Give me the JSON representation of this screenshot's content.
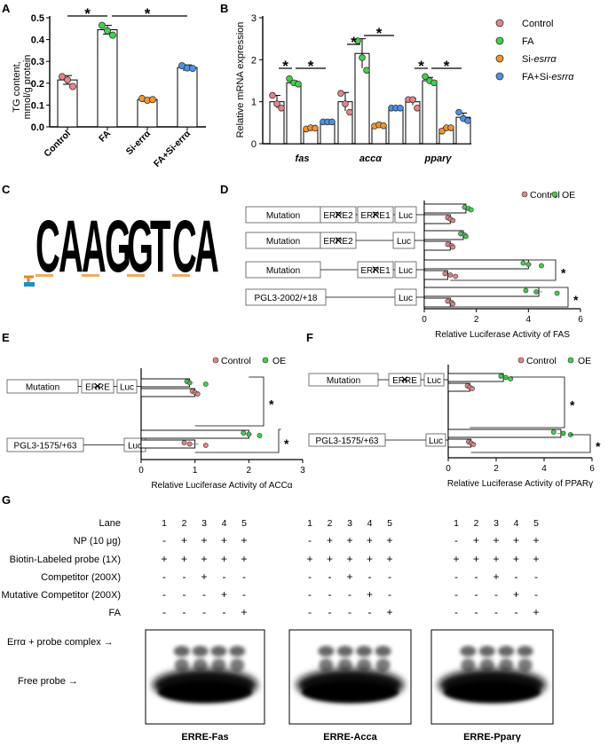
{
  "panels": {
    "A": "A",
    "B": "B",
    "C": "C",
    "D": "D",
    "E": "E",
    "F": "F",
    "G": "G"
  },
  "star": "*",
  "colors": {
    "control": "#e8838a",
    "fa": "#3fd24a",
    "si": "#f0962f",
    "fasi": "#4b92e6",
    "oe": "#3fd24a",
    "bar_fill": "#ffffff"
  },
  "panel_A": {
    "chart_data": {
      "type": "bar",
      "categories": [
        "Control",
        "FA",
        "Si-errα",
        "FA+Si-errα"
      ],
      "values": [
        0.215,
        0.445,
        0.125,
        0.272
      ],
      "errors": [
        0.02,
        0.02,
        0.008,
        0.012
      ],
      "points": [
        [
          0.23,
          0.215,
          0.185
        ],
        [
          0.465,
          0.44,
          0.42
        ],
        [
          0.13,
          0.122,
          0.125
        ],
        [
          0.28,
          0.27,
          0.268
        ]
      ],
      "ylabel": "TG content, mmol/g protein",
      "ylim": [
        0,
        0.5
      ],
      "yticks": [
        0.0,
        0.1,
        0.2,
        0.3,
        0.4,
        0.5
      ],
      "ytick_labels": [
        "0.0",
        "0.1",
        "0.2",
        "0.3",
        "0.4",
        "0.5"
      ]
    },
    "ylabel_lines": [
      "TG content,",
      "mmol/g protein"
    ],
    "category_lines": [
      "Control",
      "FA",
      "Si-errα",
      "FA+Si-errα"
    ]
  },
  "panel_B": {
    "chart_data": {
      "type": "bar",
      "categories": [
        "fas",
        "accα",
        "pparγ"
      ],
      "series": [
        {
          "name": "Control",
          "values": [
            1.0,
            1.0,
            1.0
          ],
          "errors": [
            0.15,
            0.22,
            0.08
          ],
          "points": [
            [
              1.15,
              0.95,
              0.85
            ],
            [
              1.2,
              0.95,
              0.75
            ],
            [
              1.05,
              1.05,
              0.85
            ]
          ]
        },
        {
          "name": "FA",
          "values": [
            1.45,
            2.15,
            1.5
          ],
          "errors": [
            0.05,
            0.35,
            0.08
          ],
          "points": [
            [
              1.55,
              1.45,
              1.42
            ],
            [
              2.45,
              2.05,
              1.75
            ],
            [
              1.6,
              1.5,
              1.45
            ]
          ]
        },
        {
          "name": "Si-esrrα",
          "values": [
            0.35,
            0.45,
            0.35
          ],
          "errors": [
            0.02,
            0.03,
            0.04
          ],
          "points": [
            [
              0.35,
              0.38,
              0.37
            ],
            [
              0.42,
              0.45,
              0.43
            ],
            [
              0.3,
              0.38,
              0.38
            ]
          ]
        },
        {
          "name": "FA+Si-esrrα",
          "values": [
            0.52,
            0.85,
            0.63
          ],
          "errors": [
            0.02,
            0.04,
            0.1
          ],
          "points": [
            [
              0.52,
              0.52,
              0.52
            ],
            [
              0.85,
              0.85,
              0.85
            ],
            [
              0.75,
              0.6,
              0.55
            ]
          ]
        }
      ],
      "ylabel": "Relative mRNA expression",
      "ylim": [
        0,
        3
      ],
      "yticks": [
        0,
        1,
        2,
        3
      ],
      "ytick_labels": [
        "0",
        "1",
        "2",
        "3"
      ]
    },
    "legend": [
      {
        "name_main": "Control",
        "name_italic": ""
      },
      {
        "name_main": "FA",
        "name_italic": ""
      },
      {
        "name_main": "Si-",
        "name_italic": "esrrα"
      },
      {
        "name_main": "FA+Si-",
        "name_italic": "esrrα"
      }
    ]
  },
  "panel_C": {
    "logo_text": "CAAGGTCA",
    "letter_colors": [
      "#1f8ec6",
      "#e8891c",
      "#e8891c",
      "#f0c000",
      "#f0c000",
      "#2fa24a",
      "#1f8ec6",
      "#e8891c"
    ]
  },
  "panel_D": {
    "chart_data": {
      "type": "bar",
      "orientation": "horizontal",
      "constructs": [
        "Mutation ERRE2 ERRE1",
        "Mutation ERRE2",
        "Mutation ERRE1",
        "PGL3-2002/+18"
      ],
      "series": [
        {
          "name": "OE",
          "values": [
            1.6,
            1.5,
            4.0,
            4.4
          ],
          "points": [
            [
              1.55,
              1.7,
              1.8
            ],
            [
              1.4,
              1.55,
              1.6
            ],
            [
              3.8,
              4.0,
              4.5
            ],
            [
              3.9,
              4.3,
              5.1
            ]
          ]
        },
        {
          "name": "Control",
          "values": [
            1.0,
            1.0,
            0.9,
            1.0
          ],
          "points": [
            [
              0.9,
              1.0,
              1.1
            ],
            [
              0.9,
              1.05,
              1.1
            ],
            [
              0.8,
              1.0,
              1.2
            ],
            [
              0.9,
              1.05,
              1.1
            ]
          ]
        }
      ],
      "xlabel": "Relative Luciferase Activity of FAS",
      "xlim": [
        0,
        6
      ],
      "xticks": [
        0,
        2,
        4,
        6
      ],
      "xtick_labels": [
        "0",
        "2",
        "4",
        "6"
      ]
    },
    "legend": [
      "Control",
      "OE"
    ],
    "labels": {
      "mutation": "Mutation",
      "erre2": "ERRE2",
      "erre1": "ERRE1",
      "luc": "Luc",
      "pgl3": "PGL3-2002/+18"
    }
  },
  "panel_E": {
    "chart_data": {
      "type": "bar",
      "orientation": "horizontal",
      "constructs": [
        "Mutation ERRE",
        "PGL3-1575/+63"
      ],
      "series": [
        {
          "name": "OE",
          "values": [
            0.9,
            2.0
          ],
          "points": [
            [
              0.85,
              0.9,
              1.2
            ],
            [
              1.9,
              2.0,
              2.2
            ]
          ]
        },
        {
          "name": "Control",
          "values": [
            1.0,
            1.0
          ],
          "points": [
            [
              0.95,
              1.0,
              1.05
            ],
            [
              0.8,
              0.9,
              1.2
            ]
          ]
        }
      ],
      "xlabel": "Relative Luciferase Activity of ACCα",
      "xlim": [
        0,
        3
      ],
      "xticks": [
        0,
        1,
        2,
        3
      ],
      "xtick_labels": [
        "0",
        "1",
        "2",
        "3"
      ]
    },
    "legend": [
      "Control",
      "OE"
    ],
    "labels": {
      "mutation": "Mutation",
      "erre": "ERRE",
      "luc": "Luc",
      "pgl3": "PGL3-1575/+63"
    }
  },
  "panel_F": {
    "chart_data": {
      "type": "bar",
      "orientation": "horizontal",
      "constructs": [
        "Mutation ERRE",
        "PGL3-1575/+63"
      ],
      "series": [
        {
          "name": "OE",
          "values": [
            2.3,
            4.7
          ],
          "points": [
            [
              2.2,
              2.4,
              2.6
            ],
            [
              4.4,
              4.8,
              5.1
            ]
          ]
        },
        {
          "name": "Control",
          "values": [
            0.9,
            0.95
          ],
          "points": [
            [
              0.8,
              0.9,
              1.0
            ],
            [
              0.85,
              0.95,
              1.05
            ]
          ]
        }
      ],
      "xlabel": "Relative Luciferase Activity of PPARγ",
      "xlim": [
        0,
        6
      ],
      "xticks": [
        0,
        2,
        4,
        6
      ],
      "xtick_labels": [
        "0",
        "2",
        "4",
        "6"
      ]
    },
    "legend": [
      "Control",
      "OE"
    ],
    "labels": {
      "mutation": "Mutation",
      "erre": "ERRE",
      "luc": "Luc",
      "pgl3": "PGL3-1575/+63"
    }
  },
  "panel_G": {
    "row_labels": [
      "Lane",
      "NP (10 μg)",
      "Biotin-Labeled probe (1X)",
      "Competitor (200X)",
      "Mutative Competitor (200X)",
      "FA"
    ],
    "lanes": [
      "1",
      "2",
      "3",
      "4",
      "5"
    ],
    "rows": [
      [
        "-",
        "+",
        "+",
        "+",
        "+"
      ],
      [
        "+",
        "+",
        "+",
        "+",
        "+"
      ],
      [
        "-",
        "-",
        "+",
        "-",
        "-"
      ],
      [
        "-",
        "-",
        "-",
        "+",
        "-"
      ],
      [
        "-",
        "-",
        "-",
        "-",
        "+"
      ]
    ],
    "band_labels": [
      "Errα + probe complex →",
      "Free probe →"
    ],
    "gels": [
      "ERRE-Fas",
      "ERRE-Acca",
      "ERRE-Pparγ"
    ]
  }
}
